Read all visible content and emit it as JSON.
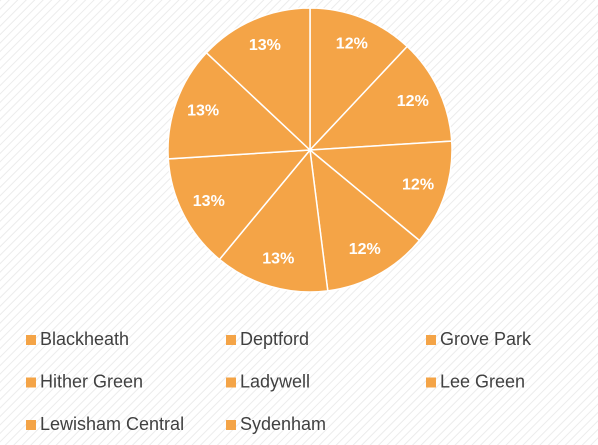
{
  "chart_data": {
    "type": "pie",
    "categories": [
      "Blackheath",
      "Deptford",
      "Grove Park",
      "Hither Green",
      "Ladywell",
      "Lee Green",
      "Lewisham Central",
      "Sydenham"
    ],
    "values": [
      12,
      12,
      12,
      12,
      13,
      13,
      13,
      13
    ],
    "value_labels": [
      "12%",
      "12%",
      "12%",
      "12%",
      "13%",
      "13%",
      "13%",
      "13%"
    ],
    "color": "#f4a447",
    "legend": "bottom"
  }
}
